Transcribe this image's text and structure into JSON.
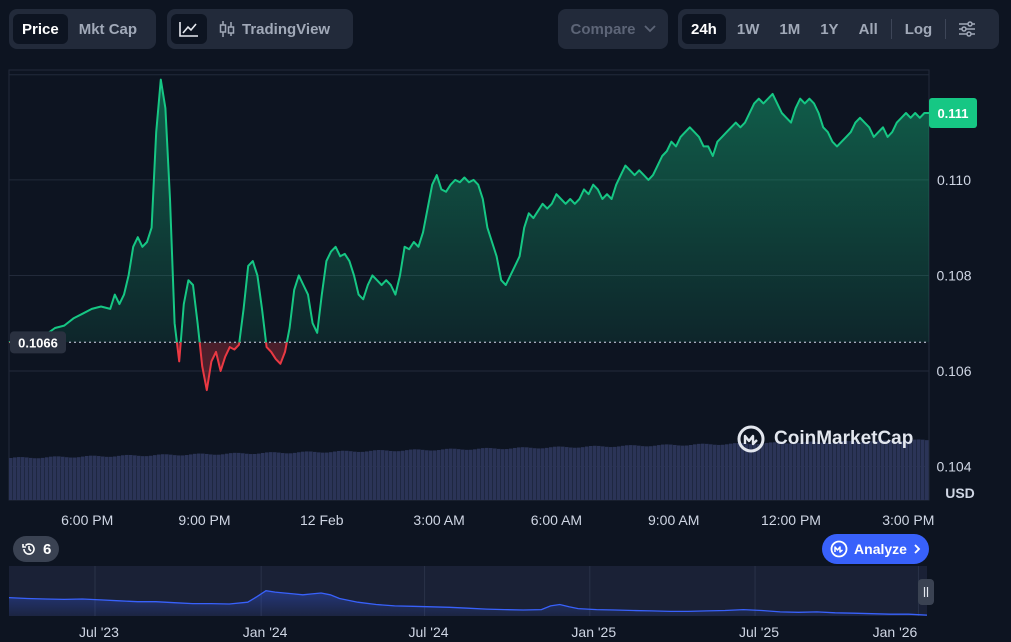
{
  "toolbar": {
    "left_tabs": [
      {
        "label": "Price",
        "active": true
      },
      {
        "label": "Mkt Cap",
        "active": false
      }
    ],
    "tradingview_label": "TradingView",
    "compare_label": "Compare",
    "ranges": [
      {
        "label": "24h",
        "active": true
      },
      {
        "label": "1W",
        "active": false
      },
      {
        "label": "1M",
        "active": false
      },
      {
        "label": "1Y",
        "active": false
      },
      {
        "label": "All",
        "active": false
      }
    ],
    "log_label": "Log"
  },
  "colors": {
    "up": "#16c784",
    "down": "#ea3943",
    "volume": "#2b3457",
    "accent": "#3861fb"
  },
  "watermark": "CoinMarketCap",
  "history_badge": "6",
  "analyze_label": "Analyze",
  "chart_data": {
    "type": "line",
    "currency": "USD",
    "open_price": 0.1066,
    "open_label": "0.1066",
    "current_price": 0.1114,
    "current_label": "0.111",
    "ylim": [
      0.1033,
      0.1123
    ],
    "y_ticks": [
      {
        "value": 0.11,
        "label": "0.110"
      },
      {
        "value": 0.108,
        "label": "0.108"
      },
      {
        "value": 0.106,
        "label": "0.106"
      },
      {
        "value": 0.104,
        "label": "0.104"
      }
    ],
    "x_ticks": [
      {
        "t": 0.085,
        "label": "6:00 PM"
      },
      {
        "t": 0.2125,
        "label": "9:00 PM"
      },
      {
        "t": 0.34,
        "label": "12 Feb"
      },
      {
        "t": 0.4675,
        "label": "3:00 AM"
      },
      {
        "t": 0.595,
        "label": "6:00 AM"
      },
      {
        "t": 0.7225,
        "label": "9:00 AM"
      },
      {
        "t": 0.85,
        "label": "12:00 PM"
      },
      {
        "t": 0.9775,
        "label": "3:00 PM"
      }
    ],
    "price_series": [
      [
        0.0,
        0.1066
      ],
      [
        0.01,
        0.10665
      ],
      [
        0.02,
        0.10667
      ],
      [
        0.03,
        0.10668
      ],
      [
        0.04,
        0.10676
      ],
      [
        0.05,
        0.1069
      ],
      [
        0.06,
        0.10695
      ],
      [
        0.07,
        0.1071
      ],
      [
        0.08,
        0.1072
      ],
      [
        0.09,
        0.1073
      ],
      [
        0.1,
        0.10735
      ],
      [
        0.11,
        0.1073
      ],
      [
        0.115,
        0.1076
      ],
      [
        0.12,
        0.1074
      ],
      [
        0.125,
        0.1076
      ],
      [
        0.13,
        0.108
      ],
      [
        0.135,
        0.1086
      ],
      [
        0.14,
        0.1088
      ],
      [
        0.145,
        0.1086
      ],
      [
        0.15,
        0.1087
      ],
      [
        0.155,
        0.109
      ],
      [
        0.16,
        0.111
      ],
      [
        0.165,
        0.1121
      ],
      [
        0.17,
        0.1115
      ],
      [
        0.175,
        0.1096
      ],
      [
        0.18,
        0.107
      ],
      [
        0.185,
        0.1062
      ],
      [
        0.19,
        0.1074
      ],
      [
        0.195,
        0.1079
      ],
      [
        0.2,
        0.1078
      ],
      [
        0.205,
        0.107
      ],
      [
        0.21,
        0.1061
      ],
      [
        0.215,
        0.1056
      ],
      [
        0.22,
        0.1062
      ],
      [
        0.225,
        0.1064
      ],
      [
        0.23,
        0.106
      ],
      [
        0.235,
        0.1063
      ],
      [
        0.24,
        0.1065
      ],
      [
        0.245,
        0.10645
      ],
      [
        0.25,
        0.10655
      ],
      [
        0.255,
        0.1073
      ],
      [
        0.26,
        0.1082
      ],
      [
        0.265,
        0.1083
      ],
      [
        0.27,
        0.108
      ],
      [
        0.275,
        0.1073
      ],
      [
        0.28,
        0.1065
      ],
      [
        0.285,
        0.1064
      ],
      [
        0.29,
        0.10625
      ],
      [
        0.295,
        0.10615
      ],
      [
        0.3,
        0.1064
      ],
      [
        0.305,
        0.1069
      ],
      [
        0.31,
        0.1077
      ],
      [
        0.315,
        0.108
      ],
      [
        0.32,
        0.1078
      ],
      [
        0.325,
        0.1076
      ],
      [
        0.33,
        0.107
      ],
      [
        0.335,
        0.1068
      ],
      [
        0.34,
        0.1076
      ],
      [
        0.345,
        0.1083
      ],
      [
        0.35,
        0.1085
      ],
      [
        0.355,
        0.1086
      ],
      [
        0.36,
        0.1084
      ],
      [
        0.365,
        0.10845
      ],
      [
        0.37,
        0.1083
      ],
      [
        0.375,
        0.108
      ],
      [
        0.38,
        0.1076
      ],
      [
        0.385,
        0.1075
      ],
      [
        0.39,
        0.1078
      ],
      [
        0.395,
        0.108
      ],
      [
        0.4,
        0.1079
      ],
      [
        0.405,
        0.1078
      ],
      [
        0.41,
        0.1079
      ],
      [
        0.415,
        0.1078
      ],
      [
        0.42,
        0.1076
      ],
      [
        0.425,
        0.108
      ],
      [
        0.43,
        0.1086
      ],
      [
        0.435,
        0.10855
      ],
      [
        0.44,
        0.1087
      ],
      [
        0.445,
        0.1086
      ],
      [
        0.45,
        0.1089
      ],
      [
        0.455,
        0.1094
      ],
      [
        0.46,
        0.1099
      ],
      [
        0.465,
        0.1101
      ],
      [
        0.47,
        0.1098
      ],
      [
        0.475,
        0.10975
      ],
      [
        0.48,
        0.1099
      ],
      [
        0.485,
        0.11
      ],
      [
        0.49,
        0.10995
      ],
      [
        0.495,
        0.11005
      ],
      [
        0.5,
        0.10995
      ],
      [
        0.505,
        0.11
      ],
      [
        0.51,
        0.1099
      ],
      [
        0.515,
        0.1096
      ],
      [
        0.52,
        0.109
      ],
      [
        0.525,
        0.1087
      ],
      [
        0.53,
        0.1084
      ],
      [
        0.535,
        0.1079
      ],
      [
        0.54,
        0.1078
      ],
      [
        0.545,
        0.108
      ],
      [
        0.55,
        0.1082
      ],
      [
        0.555,
        0.1084
      ],
      [
        0.56,
        0.109
      ],
      [
        0.565,
        0.1093
      ],
      [
        0.57,
        0.1092
      ],
      [
        0.575,
        0.10935
      ],
      [
        0.58,
        0.1095
      ],
      [
        0.585,
        0.1094
      ],
      [
        0.59,
        0.1095
      ],
      [
        0.595,
        0.1097
      ],
      [
        0.6,
        0.1096
      ],
      [
        0.605,
        0.1095
      ],
      [
        0.61,
        0.1096
      ],
      [
        0.615,
        0.1095
      ],
      [
        0.62,
        0.1096
      ],
      [
        0.625,
        0.1098
      ],
      [
        0.63,
        0.1097
      ],
      [
        0.635,
        0.1099
      ],
      [
        0.64,
        0.1098
      ],
      [
        0.645,
        0.1096
      ],
      [
        0.65,
        0.1097
      ],
      [
        0.655,
        0.1096
      ],
      [
        0.66,
        0.1099
      ],
      [
        0.665,
        0.1101
      ],
      [
        0.67,
        0.1103
      ],
      [
        0.675,
        0.1102
      ],
      [
        0.68,
        0.1101
      ],
      [
        0.685,
        0.1102
      ],
      [
        0.69,
        0.1101
      ],
      [
        0.695,
        0.11
      ],
      [
        0.7,
        0.1101
      ],
      [
        0.705,
        0.1103
      ],
      [
        0.71,
        0.1105
      ],
      [
        0.715,
        0.1106
      ],
      [
        0.72,
        0.1108
      ],
      [
        0.725,
        0.1107
      ],
      [
        0.73,
        0.1109
      ],
      [
        0.735,
        0.111
      ],
      [
        0.74,
        0.1111
      ],
      [
        0.745,
        0.111
      ],
      [
        0.75,
        0.1109
      ],
      [
        0.755,
        0.1107
      ],
      [
        0.76,
        0.1107
      ],
      [
        0.765,
        0.1105
      ],
      [
        0.77,
        0.1108
      ],
      [
        0.775,
        0.1109
      ],
      [
        0.78,
        0.111
      ],
      [
        0.785,
        0.1111
      ],
      [
        0.79,
        0.1112
      ],
      [
        0.795,
        0.1111
      ],
      [
        0.8,
        0.1112
      ],
      [
        0.805,
        0.1114
      ],
      [
        0.81,
        0.1116
      ],
      [
        0.815,
        0.1117
      ],
      [
        0.82,
        0.1116
      ],
      [
        0.825,
        0.1117
      ],
      [
        0.83,
        0.1118
      ],
      [
        0.835,
        0.1116
      ],
      [
        0.84,
        0.1114
      ],
      [
        0.845,
        0.1113
      ],
      [
        0.85,
        0.1112
      ],
      [
        0.855,
        0.1115
      ],
      [
        0.86,
        0.1117
      ],
      [
        0.865,
        0.1116
      ],
      [
        0.87,
        0.1117
      ],
      [
        0.875,
        0.1116
      ],
      [
        0.88,
        0.1114
      ],
      [
        0.885,
        0.1111
      ],
      [
        0.89,
        0.111
      ],
      [
        0.895,
        0.1108
      ],
      [
        0.9,
        0.1107
      ],
      [
        0.905,
        0.1108
      ],
      [
        0.91,
        0.1109
      ],
      [
        0.915,
        0.111
      ],
      [
        0.92,
        0.1112
      ],
      [
        0.925,
        0.1113
      ],
      [
        0.93,
        0.1112
      ],
      [
        0.935,
        0.1111
      ],
      [
        0.94,
        0.1109
      ],
      [
        0.945,
        0.111
      ],
      [
        0.95,
        0.1111
      ],
      [
        0.955,
        0.1109
      ],
      [
        0.96,
        0.111
      ],
      [
        0.965,
        0.1112
      ],
      [
        0.97,
        0.1113
      ],
      [
        0.975,
        0.1114
      ],
      [
        0.98,
        0.1113
      ],
      [
        0.985,
        0.1114
      ],
      [
        0.99,
        0.1113
      ],
      [
        0.995,
        0.1114
      ],
      [
        1.0,
        0.1114
      ]
    ],
    "navigator": {
      "x_labels": [
        {
          "t": 0.098,
          "label": "Jul '23"
        },
        {
          "t": 0.279,
          "label": "Jan '24"
        },
        {
          "t": 0.457,
          "label": "Jul '24"
        },
        {
          "t": 0.637,
          "label": "Jan '25"
        },
        {
          "t": 0.817,
          "label": "Jul '25"
        },
        {
          "t": 0.995,
          "label": "Jan '26"
        }
      ],
      "series": [
        [
          0.0,
          0.4
        ],
        [
          0.02,
          0.38
        ],
        [
          0.04,
          0.37
        ],
        [
          0.06,
          0.36
        ],
        [
          0.08,
          0.37
        ],
        [
          0.1,
          0.35
        ],
        [
          0.12,
          0.33
        ],
        [
          0.14,
          0.31
        ],
        [
          0.16,
          0.31
        ],
        [
          0.18,
          0.29
        ],
        [
          0.2,
          0.27
        ],
        [
          0.22,
          0.27
        ],
        [
          0.24,
          0.26
        ],
        [
          0.26,
          0.3
        ],
        [
          0.27,
          0.42
        ],
        [
          0.28,
          0.55
        ],
        [
          0.29,
          0.52
        ],
        [
          0.3,
          0.5
        ],
        [
          0.31,
          0.48
        ],
        [
          0.32,
          0.46
        ],
        [
          0.33,
          0.48
        ],
        [
          0.34,
          0.5
        ],
        [
          0.35,
          0.46
        ],
        [
          0.36,
          0.38
        ],
        [
          0.38,
          0.3
        ],
        [
          0.4,
          0.25
        ],
        [
          0.42,
          0.22
        ],
        [
          0.44,
          0.21
        ],
        [
          0.46,
          0.2
        ],
        [
          0.48,
          0.19
        ],
        [
          0.5,
          0.17
        ],
        [
          0.52,
          0.15
        ],
        [
          0.54,
          0.14
        ],
        [
          0.56,
          0.13
        ],
        [
          0.58,
          0.14
        ],
        [
          0.59,
          0.22
        ],
        [
          0.6,
          0.25
        ],
        [
          0.61,
          0.2
        ],
        [
          0.62,
          0.16
        ],
        [
          0.64,
          0.14
        ],
        [
          0.66,
          0.13
        ],
        [
          0.68,
          0.12
        ],
        [
          0.7,
          0.11
        ],
        [
          0.72,
          0.1
        ],
        [
          0.74,
          0.1
        ],
        [
          0.76,
          0.11
        ],
        [
          0.78,
          0.12
        ],
        [
          0.8,
          0.14
        ],
        [
          0.82,
          0.12
        ],
        [
          0.84,
          0.09
        ],
        [
          0.86,
          0.08
        ],
        [
          0.88,
          0.09
        ],
        [
          0.9,
          0.07
        ],
        [
          0.92,
          0.06
        ],
        [
          0.94,
          0.05
        ],
        [
          0.96,
          0.04
        ],
        [
          0.98,
          0.04
        ],
        [
          1.0,
          0.02
        ]
      ]
    }
  }
}
